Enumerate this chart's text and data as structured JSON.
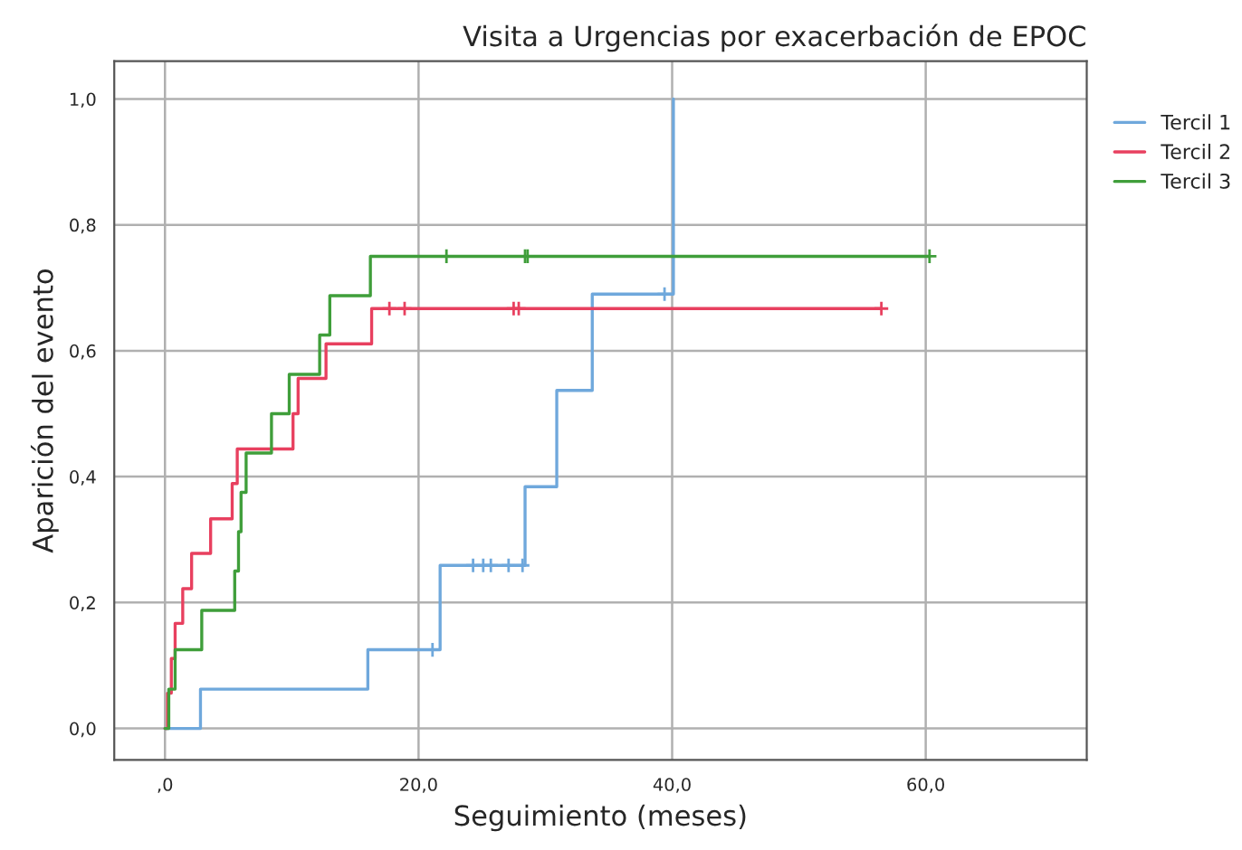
{
  "chart_data": {
    "type": "step",
    "title": "Visita a Urgencias por exacerbación de EPOC",
    "xlabel": "Seguimiento (meses)",
    "ylabel": "Aparición del evento",
    "xlim": [
      -4,
      72.7
    ],
    "ylim": [
      -0.05,
      1.06
    ],
    "xticks": [
      {
        "value": 0,
        "label": ",0"
      },
      {
        "value": 20,
        "label": "20,0"
      },
      {
        "value": 40,
        "label": "40,0"
      },
      {
        "value": 60,
        "label": "60,0"
      }
    ],
    "yticks": [
      {
        "value": 0,
        "label": "0,0"
      },
      {
        "value": 0.2,
        "label": "0,2"
      },
      {
        "value": 0.4,
        "label": "0,4"
      },
      {
        "value": 0.6,
        "label": "0,6"
      },
      {
        "value": 0.8,
        "label": "0,8"
      },
      {
        "value": 1.0,
        "label": "1,0"
      }
    ],
    "grid": true,
    "legend": "top right",
    "series": [
      {
        "name": "Tercil 1",
        "color": "#6fa8dc",
        "x": [
          0,
          2.8,
          16.0,
          21.7,
          28.4,
          30.9,
          33.7,
          40.1
        ],
        "values": [
          0,
          0.0625,
          0.125,
          0.259,
          0.384,
          0.537,
          0.69,
          1.0
        ]
      },
      {
        "name": "Tercil 2",
        "color": "#e8405f",
        "x": [
          0,
          0.2,
          0.5,
          0.8,
          1.4,
          2.1,
          3.6,
          5.3,
          5.7,
          10.1,
          10.5,
          12.7,
          16.3,
          56.5
        ],
        "values": [
          0,
          0.056,
          0.111,
          0.167,
          0.222,
          0.278,
          0.333,
          0.389,
          0.444,
          0.5,
          0.556,
          0.611,
          0.667,
          0.667
        ]
      },
      {
        "name": "Tercil 3",
        "color": "#3f9e3a",
        "x": [
          0,
          0.3,
          0.8,
          2.9,
          5.5,
          5.8,
          6.0,
          6.4,
          8.4,
          9.8,
          12.2,
          13.0,
          16.2,
          60.3
        ],
        "values": [
          0,
          0.0625,
          0.125,
          0.1875,
          0.25,
          0.3125,
          0.375,
          0.4375,
          0.5,
          0.5625,
          0.625,
          0.6875,
          0.75,
          0.75
        ]
      },
      {
        "type": "scatter",
        "marker": "cross",
        "color": "#6fa8dc",
        "x": [
          21.1,
          24.3,
          25.1,
          25.7,
          27.1,
          28.2,
          39.4
        ],
        "values": [
          0.125,
          0.259,
          0.259,
          0.259,
          0.259,
          0.259,
          0.69
        ]
      },
      {
        "type": "scatter",
        "marker": "cross",
        "color": "#e8405f",
        "x": [
          17.7,
          18.9,
          27.5,
          27.9,
          56.5
        ],
        "values": [
          0.667,
          0.667,
          0.667,
          0.667,
          0.667
        ]
      },
      {
        "type": "scatter",
        "marker": "cross",
        "color": "#3f9e3a",
        "x": [
          22.2,
          28.4,
          28.6,
          60.3
        ],
        "values": [
          0.75,
          0.75,
          0.75,
          0.75
        ]
      }
    ]
  }
}
